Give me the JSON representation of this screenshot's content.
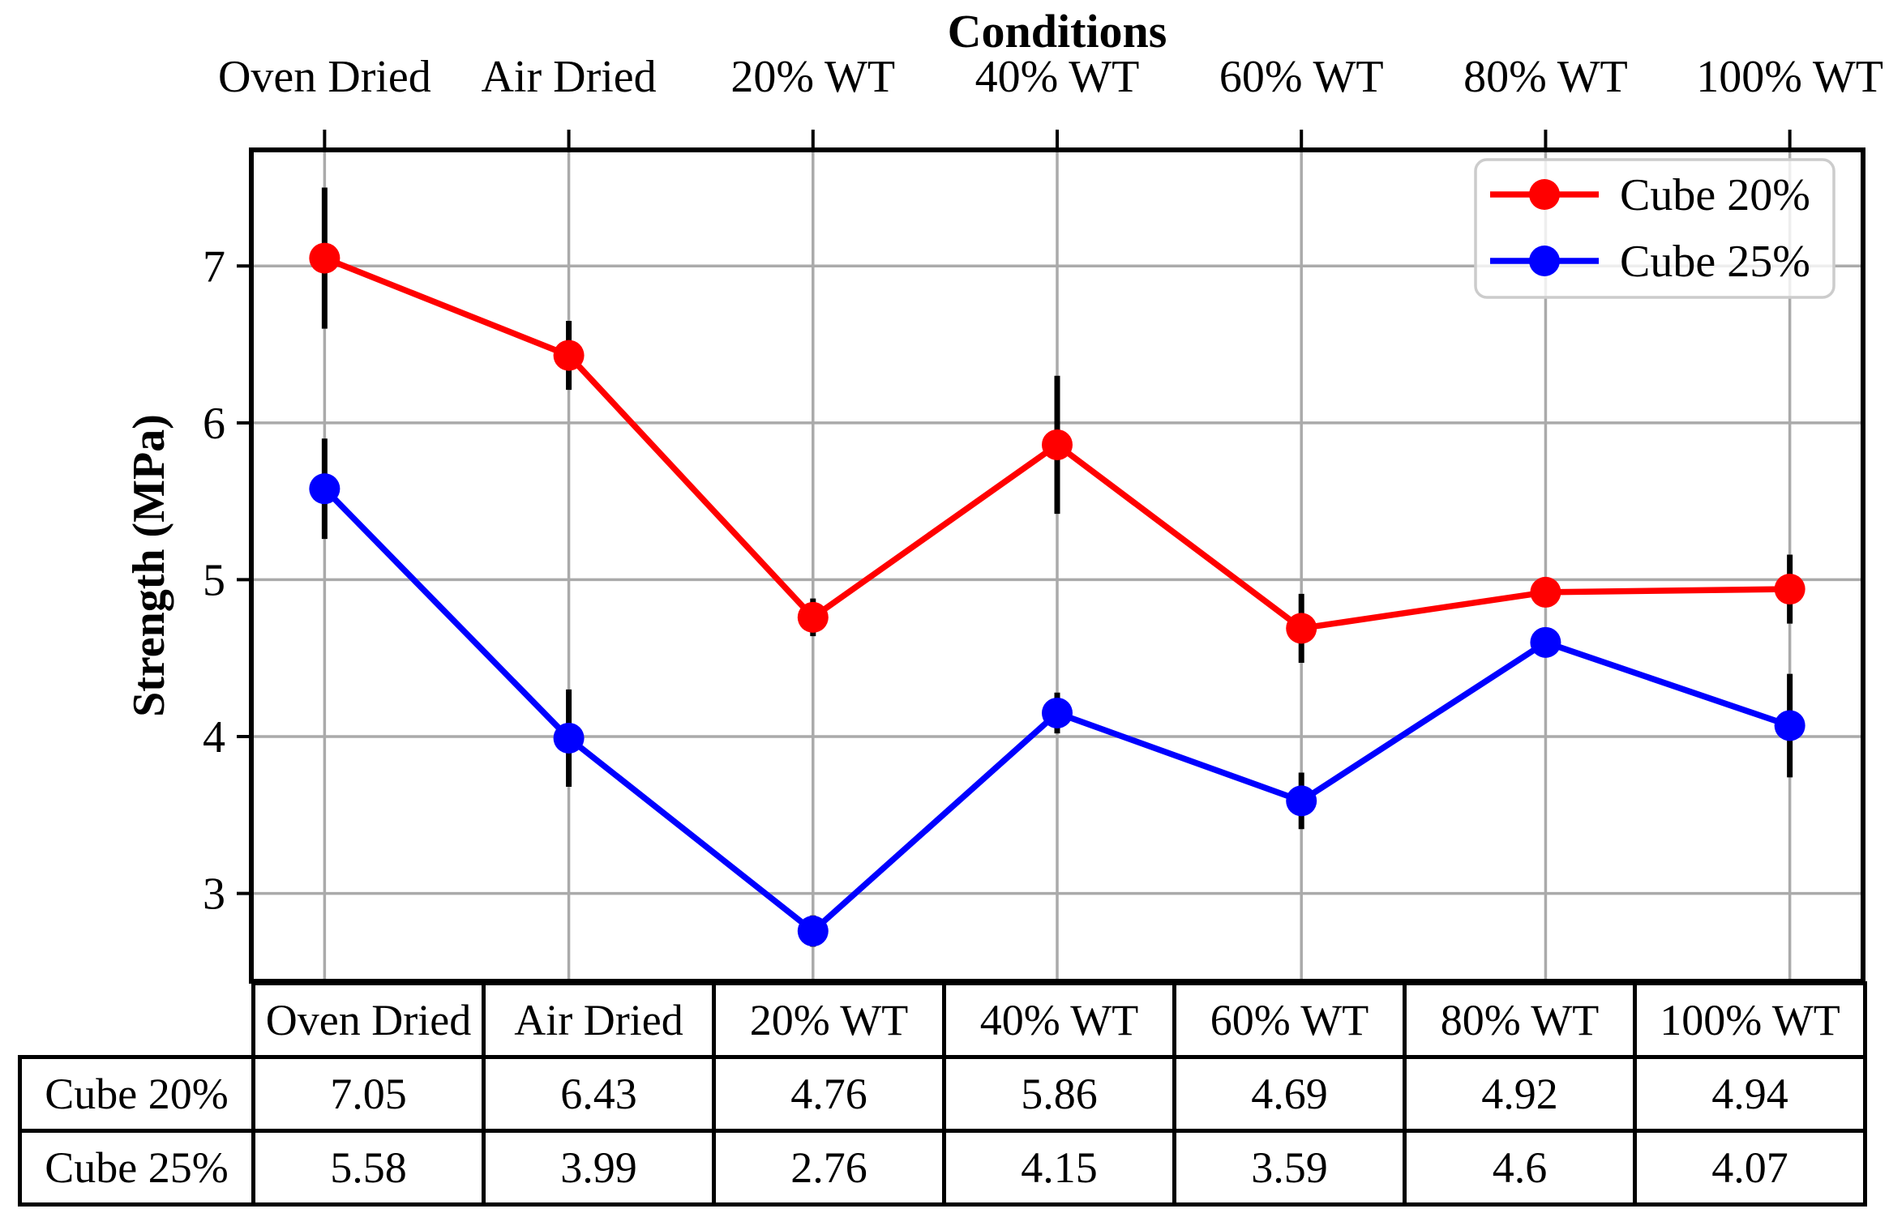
{
  "chart_data": {
    "type": "line",
    "title": "Conditions",
    "categories": [
      "Oven Dried",
      "Air Dried",
      "20% WT",
      "40% WT",
      "60% WT",
      "80% WT",
      "100% WT"
    ],
    "series": [
      {
        "name": "Cube 20%",
        "color": "#ff0000",
        "values": [
          7.05,
          6.43,
          4.76,
          5.86,
          4.69,
          4.92,
          4.94
        ],
        "errors": [
          0.45,
          0.22,
          0.12,
          0.44,
          0.22,
          0,
          0.22
        ]
      },
      {
        "name": "Cube 25%",
        "color": "#0000ff",
        "values": [
          5.58,
          3.99,
          2.76,
          4.15,
          3.59,
          4.6,
          4.07
        ],
        "errors": [
          0.32,
          0.31,
          0.1,
          0.13,
          0.18,
          0,
          0.33
        ]
      }
    ],
    "xlabel": "Conditions",
    "ylabel": "Strength (MPa)",
    "yticks": [
      3,
      4,
      5,
      6,
      7
    ],
    "ylim": [
      2.44,
      7.74
    ],
    "xlim": [
      -0.3,
      6.3
    ],
    "grid": true,
    "grid_color": "#aaaaaa",
    "axis_color": "#000000",
    "legend_position": "upper right",
    "legend_border_color": "#cccccc"
  },
  "table": {
    "col_headers": [
      "Oven Dried",
      "Air Dried",
      "20% WT",
      "40% WT",
      "60% WT",
      "80% WT",
      "100% WT"
    ],
    "rows": [
      {
        "label": "Cube 20%",
        "values": [
          "7.05",
          "6.43",
          "4.76",
          "5.86",
          "4.69",
          "4.92",
          "4.94"
        ]
      },
      {
        "label": "Cube 25%",
        "values": [
          "5.58",
          "3.99",
          "2.76",
          "4.15",
          "3.59",
          "4.6",
          "4.07"
        ]
      }
    ]
  }
}
